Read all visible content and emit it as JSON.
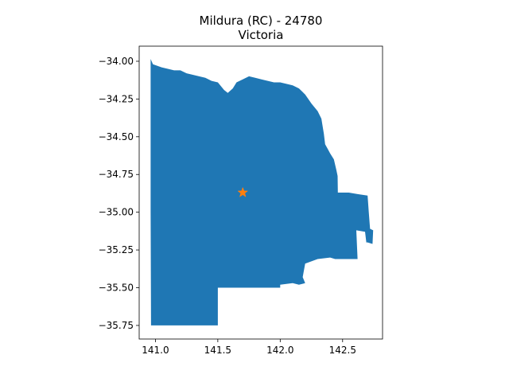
{
  "chart_data": {
    "type": "map",
    "title": "Mildura (RC) - 24780",
    "subtitle": "Victoria",
    "xlabel": "",
    "ylabel": "",
    "xlim": [
      140.87,
      142.82
    ],
    "ylim": [
      -35.84,
      -33.9
    ],
    "x_ticks": [
      {
        "value": 141.0,
        "label": "141.0"
      },
      {
        "value": 141.5,
        "label": "141.5"
      },
      {
        "value": 142.0,
        "label": "142.0"
      },
      {
        "value": 142.5,
        "label": "142.5"
      }
    ],
    "y_ticks": [
      {
        "value": -34.0,
        "label": "−34.00"
      },
      {
        "value": -34.25,
        "label": "−34.25"
      },
      {
        "value": -34.5,
        "label": "−34.50"
      },
      {
        "value": -34.75,
        "label": "−34.75"
      },
      {
        "value": -35.0,
        "label": "−35.00"
      },
      {
        "value": -35.25,
        "label": "−35.25"
      },
      {
        "value": -35.5,
        "label": "−35.50"
      },
      {
        "value": -35.75,
        "label": "−35.75"
      }
    ],
    "region": {
      "fill": "#1f77b4",
      "outline": [
        [
          140.962,
          -33.985
        ],
        [
          140.98,
          -34.02
        ],
        [
          141.05,
          -34.04
        ],
        [
          141.1,
          -34.05
        ],
        [
          141.15,
          -34.06
        ],
        [
          141.2,
          -34.06
        ],
        [
          141.25,
          -34.08
        ],
        [
          141.3,
          -34.09
        ],
        [
          141.35,
          -34.1
        ],
        [
          141.4,
          -34.11
        ],
        [
          141.45,
          -34.13
        ],
        [
          141.5,
          -34.14
        ],
        [
          141.55,
          -34.19
        ],
        [
          141.58,
          -34.21
        ],
        [
          141.62,
          -34.18
        ],
        [
          141.65,
          -34.14
        ],
        [
          141.7,
          -34.12
        ],
        [
          141.75,
          -34.1
        ],
        [
          141.8,
          -34.11
        ],
        [
          141.85,
          -34.12
        ],
        [
          141.9,
          -34.13
        ],
        [
          141.95,
          -34.14
        ],
        [
          142.0,
          -34.14
        ],
        [
          142.05,
          -34.15
        ],
        [
          142.1,
          -34.16
        ],
        [
          142.15,
          -34.18
        ],
        [
          142.2,
          -34.22
        ],
        [
          142.25,
          -34.28
        ],
        [
          142.3,
          -34.33
        ],
        [
          142.33,
          -34.38
        ],
        [
          142.35,
          -34.48
        ],
        [
          142.36,
          -34.55
        ],
        [
          142.38,
          -34.58
        ],
        [
          142.4,
          -34.61
        ],
        [
          142.43,
          -34.65
        ],
        [
          142.45,
          -34.72
        ],
        [
          142.46,
          -34.76
        ],
        [
          142.462,
          -34.87
        ],
        [
          142.55,
          -34.87
        ],
        [
          142.62,
          -34.88
        ],
        [
          142.7,
          -34.89
        ],
        [
          142.71,
          -35.0
        ],
        [
          142.72,
          -35.11
        ],
        [
          142.745,
          -35.12
        ],
        [
          142.74,
          -35.21
        ],
        [
          142.7,
          -35.2
        ],
        [
          142.69,
          -35.2
        ],
        [
          142.68,
          -35.13
        ],
        [
          142.61,
          -35.12
        ],
        [
          142.62,
          -35.31
        ],
        [
          142.44,
          -35.31
        ],
        [
          142.4,
          -35.3
        ],
        [
          142.3,
          -35.31
        ],
        [
          142.2,
          -35.34
        ],
        [
          142.18,
          -35.43
        ],
        [
          142.2,
          -35.47
        ],
        [
          142.15,
          -35.48
        ],
        [
          142.1,
          -35.47
        ],
        [
          142.0,
          -35.48
        ],
        [
          142.0,
          -35.5
        ],
        [
          141.9,
          -35.5
        ],
        [
          141.8,
          -35.5
        ],
        [
          141.7,
          -35.5
        ],
        [
          141.6,
          -35.5
        ],
        [
          141.5,
          -35.5
        ],
        [
          141.5,
          -35.75
        ],
        [
          141.4,
          -35.75
        ],
        [
          141.3,
          -35.75
        ],
        [
          141.2,
          -35.75
        ],
        [
          141.1,
          -35.75
        ],
        [
          140.965,
          -35.75
        ],
        [
          140.962,
          -35.0
        ]
      ]
    },
    "marker": {
      "symbol": "star",
      "x": 141.7,
      "y": -34.87,
      "color": "#ff7f0e"
    }
  }
}
